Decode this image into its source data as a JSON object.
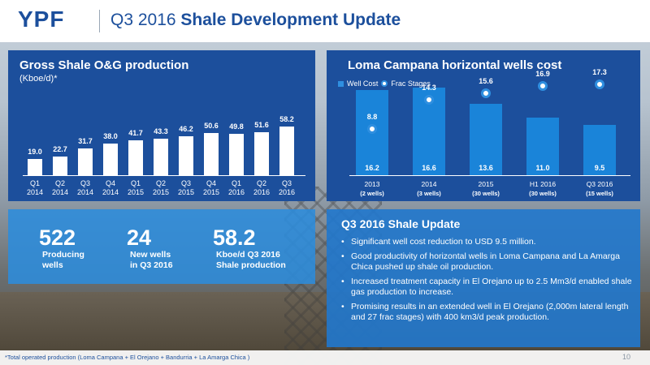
{
  "header": {
    "logo": "YPF",
    "title_prefix": "Q3 2016 ",
    "title_bold": "Shale Development Update"
  },
  "production_panel": {
    "title": "Gross Shale O&G production",
    "subtitle": "(Kboe/d)*"
  },
  "wells_cost_panel": {
    "title": "Loma Campana horizontal wells cost",
    "legend_well_cost": "Well Cost",
    "legend_frac_stages": "Frac Stages"
  },
  "chart_data": [
    {
      "type": "bar",
      "title": "Gross Shale O&G production",
      "ylabel": "(Kboe/d)*",
      "categories": [
        "Q1 2014",
        "Q2 2014",
        "Q3 2014",
        "Q4 2014",
        "Q1 2015",
        "Q2 2015",
        "Q3 2015",
        "Q4 2015",
        "Q1 2016",
        "Q2 2016",
        "Q3 2016"
      ],
      "category_lines": [
        [
          "Q1",
          "2014"
        ],
        [
          "Q2",
          "2014"
        ],
        [
          "Q3",
          "2014"
        ],
        [
          "Q4",
          "2014"
        ],
        [
          "Q1",
          "2015"
        ],
        [
          "Q2",
          "2015"
        ],
        [
          "Q3",
          "2015"
        ],
        [
          "Q4",
          "2015"
        ],
        [
          "Q1",
          "2016"
        ],
        [
          "Q2",
          "2016"
        ],
        [
          "Q3",
          "2016"
        ]
      ],
      "values": [
        19.0,
        22.7,
        31.7,
        38.0,
        41.7,
        43.3,
        46.2,
        50.6,
        49.8,
        51.6,
        58.2
      ],
      "value_labels": [
        "19.0",
        "22.7",
        "31.7",
        "38.0",
        "41.7",
        "43.3",
        "46.2",
        "50.6",
        "49.8",
        "51.6",
        "58.2"
      ],
      "ylim": [
        0,
        60
      ],
      "color": "#ffffff"
    },
    {
      "type": "bar",
      "title": "Loma Campana horizontal wells cost",
      "categories": [
        "2013",
        "2014",
        "2015",
        "H1 2016",
        "Q3 2016"
      ],
      "category_notes": [
        "(2 wells)",
        "(3 wells)",
        "(30 wells)",
        "(30 wells)",
        "(15 wells)"
      ],
      "series": [
        {
          "name": "Well Cost",
          "type": "bar",
          "values": [
            16.2,
            16.6,
            13.6,
            11.0,
            9.5
          ],
          "labels": [
            "16.2",
            "16.6",
            "13.6",
            "11.0",
            "9.5"
          ],
          "color": "#1a84d9"
        },
        {
          "name": "Frac Stages",
          "type": "scatter",
          "values": [
            8.8,
            14.3,
            15.6,
            16.9,
            17.3
          ],
          "labels": [
            "8.8",
            "14.3",
            "15.6",
            "16.9",
            "17.3"
          ],
          "color": "#ffffff"
        }
      ],
      "ylim": [
        0,
        20
      ]
    }
  ],
  "stats": [
    {
      "value": "522",
      "label_line1": "Producing",
      "label_line2": "wells"
    },
    {
      "value": "24",
      "label_line1": "New wells",
      "label_line2": "in Q3 2016"
    },
    {
      "value": "58.2",
      "label_line1": "Kboe/d Q3 2016",
      "label_line2": "Shale production"
    }
  ],
  "update": {
    "title": "Q3 2016 Shale Update",
    "bullets": [
      "Significant well cost reduction to USD 9.5 million.",
      "Good productivity of horizontal wells in Loma Campana and La Amarga Chica pushed up shale oil production.",
      "Increased treatment capacity in El Orejano up to 2.5 Mm3/d enabled shale gas production to increase.",
      "Promising results in an extended well in El Orejano (2,000m lateral length and 27 frac stages) with 400 km3/d peak production."
    ]
  },
  "footer": {
    "footnote": "*Total operated production (Loma Campana + El Orejano + Bandurria + La Amarga Chica )",
    "page_number": "10"
  },
  "colors": {
    "brand_blue": "#1c4f9c",
    "accent_blue": "#2f8fe0"
  }
}
